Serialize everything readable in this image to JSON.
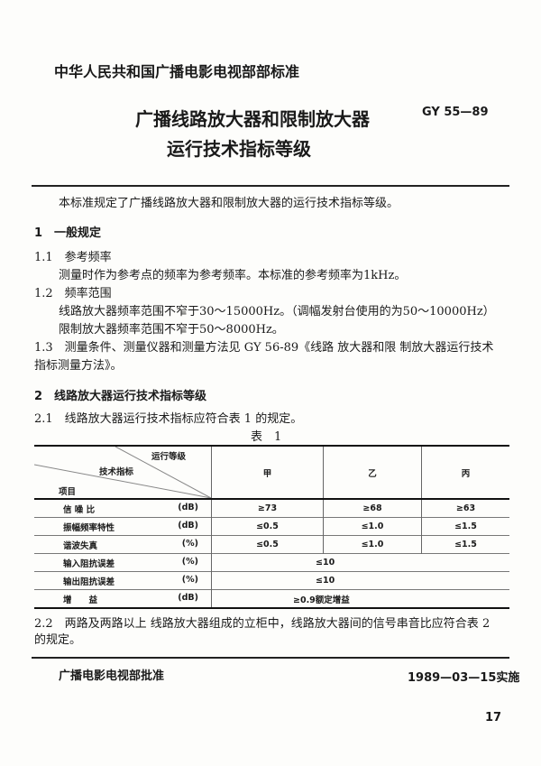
{
  "header": {
    "org": "中华人民共和国广播电影电视部部标准",
    "title_line1": "广播线路放大器和限制放大器",
    "title_line2": "运行技术指标等级",
    "code": "GY 55—89"
  },
  "body": {
    "intro": "本标准规定了广播线路放大器和限制放大器的运行技术指标等级。",
    "s1": "1　一般规定",
    "s1_1": "1.1　参考频率",
    "s1_1_text": "测量时作为参考点的频率为参考频率。本标准的参考频率为1kHz。",
    "s1_2": "1.2　频率范围",
    "s1_2_text1": "线路放大器频率范围不窄于30～15000Hz。（调幅发射台使用的为50～10000Hz）",
    "s1_2_text2": "限制放大器频率范围不窄于50～8000Hz。",
    "s1_3": "1.3　测量条件、测量仪器和测量方法见 GY 56-89《线路 放大器和限 制放大器运行技术",
    "s1_3_cont": "指标测量方法》。",
    "s2": "2　线路放大器运行技术指标等级",
    "s2_1": "2.1　线路放大器运行技术指标应符合表 1 的规定。",
    "table_caption": "表　1",
    "s2_2": "2.2　两路及两路以上 线路放大器组成的立柜中，线路放大器间的信号串音比应符合表 2",
    "s2_2_cont": "的规定。"
  },
  "table": {
    "corner": {
      "top": "运行等级",
      "middle": "技术指标",
      "bottom": "项目"
    },
    "grades": [
      "甲",
      "乙",
      "丙"
    ],
    "rows": [
      {
        "item": "信 噪 比",
        "unit": "(dB)",
        "values": [
          "≥73",
          "≥68",
          "≥63"
        ]
      },
      {
        "item": "振幅频率特性",
        "unit": "(dB)",
        "values": [
          "≤0.5",
          "≤1.0",
          "≤1.5"
        ]
      },
      {
        "item": "谐波失真",
        "unit": "(%)",
        "values": [
          "≤0.5",
          "≤1.0",
          "≤1.5"
        ]
      },
      {
        "item": "输入阻抗误差",
        "unit": "(%)",
        "values": [
          "≤10"
        ]
      },
      {
        "item": "输出阻抗误差",
        "unit": "(%)",
        "values": [
          "≤10"
        ]
      },
      {
        "item": "增　　益",
        "unit": "(dB)",
        "values": [
          "≥0.9额定增益"
        ]
      }
    ]
  },
  "footer": {
    "approved": "广播电影电视部批准",
    "effective": "1989—03—15实施",
    "page": "17"
  }
}
